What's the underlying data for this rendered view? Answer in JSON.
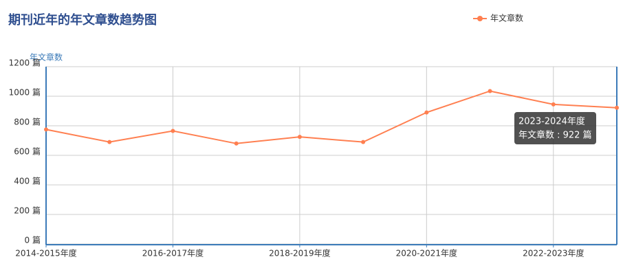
{
  "chart_data": {
    "type": "line",
    "title": "期刊近年的年文章数趋势图",
    "y_axis_name": "年文章数",
    "categories": [
      "2014-2015年度",
      null,
      "2016-2017年度",
      null,
      "2018-2019年度",
      null,
      "2020-2021年度",
      null,
      "2022-2023年度",
      null
    ],
    "series": [
      {
        "name": "年文章数",
        "color": "#ff7f50",
        "values": [
          775,
          690,
          765,
          680,
          725,
          690,
          890,
          1035,
          945,
          922
        ]
      }
    ],
    "ylim": [
      0,
      1200
    ],
    "yticks": [
      {
        "value": 0,
        "label": "0 篇"
      },
      {
        "value": 200,
        "label": "200 篇"
      },
      {
        "value": 400,
        "label": "400 篇"
      },
      {
        "value": 600,
        "label": "600 篇"
      },
      {
        "value": 800,
        "label": "800 篇"
      },
      {
        "value": 1000,
        "label": "1000 篇"
      },
      {
        "value": 1200,
        "label": "1200 篇"
      }
    ],
    "grid": true,
    "legend": "top-right",
    "tooltip": {
      "title": "2023-2024年度",
      "text": "年文章数 : 922 篇"
    }
  }
}
